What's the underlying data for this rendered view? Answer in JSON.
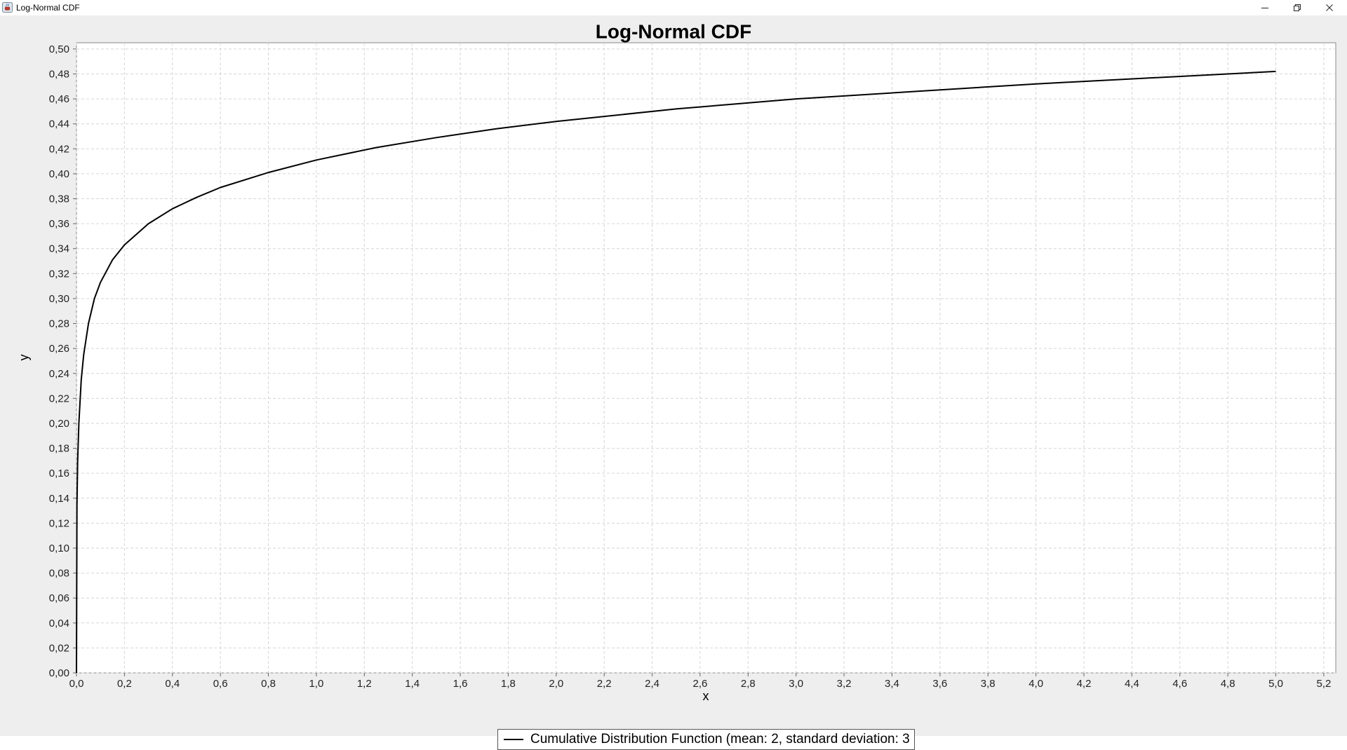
{
  "window": {
    "title": "Log-Normal CDF",
    "icons": [
      "java-app-icon",
      "minimize-icon",
      "restore-icon",
      "close-icon"
    ]
  },
  "chart_data": {
    "type": "line",
    "title": "Log-Normal CDF",
    "xlabel": "x",
    "ylabel": "y",
    "xlim": [
      0,
      5.25
    ],
    "ylim": [
      0,
      0.505
    ],
    "x_ticks": [
      "0,0",
      "0,2",
      "0,4",
      "0,6",
      "0,8",
      "1,0",
      "1,2",
      "1,4",
      "1,6",
      "1,8",
      "2,0",
      "2,2",
      "2,4",
      "2,6",
      "2,8",
      "3,0",
      "3,2",
      "3,4",
      "3,6",
      "3,8",
      "4,0",
      "4,2",
      "4,4",
      "4,6",
      "4,8",
      "5,0",
      "5,2"
    ],
    "y_ticks": [
      "0,00",
      "0,02",
      "0,04",
      "0,06",
      "0,08",
      "0,10",
      "0,12",
      "0,14",
      "0,16",
      "0,18",
      "0,20",
      "0,22",
      "0,24",
      "0,26",
      "0,28",
      "0,30",
      "0,32",
      "0,34",
      "0,36",
      "0,38",
      "0,40",
      "0,42",
      "0,44",
      "0,46",
      "0,48",
      "0,50"
    ],
    "grid": true,
    "legend_position": "bottom-center",
    "series": [
      {
        "name": "Cumulative Distribution Function (mean: 2, standard deviation: 3",
        "color": "#000000",
        "x": [
          0.0,
          0.002,
          0.005,
          0.01,
          0.02,
          0.03,
          0.05,
          0.075,
          0.1,
          0.15,
          0.2,
          0.3,
          0.4,
          0.5,
          0.6,
          0.8,
          1.0,
          1.25,
          1.5,
          1.75,
          2.0,
          2.5,
          3.0,
          3.5,
          4.0,
          4.5,
          5.0
        ],
        "y": [
          0.0,
          0.135,
          0.17,
          0.2,
          0.235,
          0.255,
          0.28,
          0.3,
          0.313,
          0.331,
          0.343,
          0.36,
          0.372,
          0.381,
          0.389,
          0.401,
          0.411,
          0.421,
          0.429,
          0.436,
          0.442,
          0.452,
          0.46,
          0.466,
          0.472,
          0.477,
          0.482
        ]
      }
    ]
  }
}
